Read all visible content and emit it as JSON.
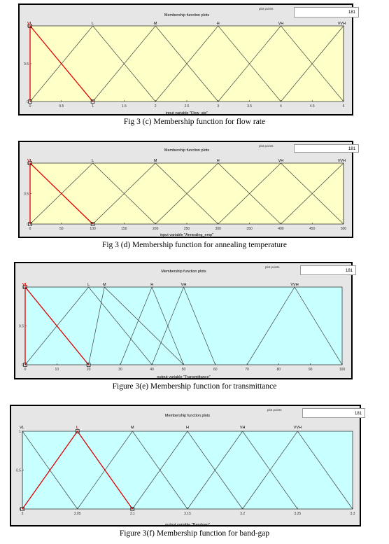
{
  "plot_points_label": "plot points",
  "chart_data": [
    {
      "type": "line",
      "title": "Membership function plots",
      "plot_points": "181",
      "xlabel": "input variable \"Flow_ate\"",
      "xlim": [
        0,
        5
      ],
      "ylim": [
        0,
        1
      ],
      "x_ticks": [
        "0",
        "0.5",
        "1",
        "1.5",
        "2",
        "2.5",
        "3",
        "3.5",
        "4",
        "4.5",
        "5"
      ],
      "y_ticks": [
        "0",
        "0.5",
        "1"
      ],
      "background": "#ffffc8",
      "series": [
        {
          "name": "VL",
          "x": [
            0,
            0,
            1
          ],
          "y": [
            0,
            1,
            0
          ],
          "selected": true
        },
        {
          "name": "L",
          "x": [
            0,
            1,
            2
          ],
          "y": [
            0,
            1,
            0
          ]
        },
        {
          "name": "M",
          "x": [
            1,
            2,
            3
          ],
          "y": [
            0,
            1,
            0
          ]
        },
        {
          "name": "H",
          "x": [
            2,
            3,
            4
          ],
          "y": [
            0,
            1,
            0
          ]
        },
        {
          "name": "VH",
          "x": [
            3,
            4,
            5
          ],
          "y": [
            0,
            1,
            0
          ]
        },
        {
          "name": "VVH",
          "x": [
            4,
            5,
            5
          ],
          "y": [
            0,
            1,
            0
          ]
        }
      ],
      "caption": "Fig 3 (c) Membership function for flow rate"
    },
    {
      "type": "line",
      "title": "Membership function plots",
      "plot_points": "181",
      "xlabel": "input variable \"Annealing_emp\"",
      "xlim": [
        0,
        500
      ],
      "ylim": [
        0,
        1
      ],
      "x_ticks": [
        "0",
        "50",
        "100",
        "150",
        "200",
        "250",
        "300",
        "350",
        "400",
        "450",
        "500"
      ],
      "y_ticks": [
        "0",
        "0.5",
        "1"
      ],
      "background": "#ffffc8",
      "series": [
        {
          "name": "VL",
          "x": [
            0,
            0,
            100
          ],
          "y": [
            0,
            1,
            0
          ],
          "selected": true
        },
        {
          "name": "L",
          "x": [
            0,
            100,
            200
          ],
          "y": [
            0,
            1,
            0
          ]
        },
        {
          "name": "M",
          "x": [
            100,
            200,
            300
          ],
          "y": [
            0,
            1,
            0
          ]
        },
        {
          "name": "H",
          "x": [
            200,
            300,
            400
          ],
          "y": [
            0,
            1,
            0
          ]
        },
        {
          "name": "VH",
          "x": [
            300,
            400,
            500
          ],
          "y": [
            0,
            1,
            0
          ]
        },
        {
          "name": "VVH",
          "x": [
            400,
            500,
            500
          ],
          "y": [
            0,
            1,
            0
          ]
        }
      ],
      "caption": "Fig 3 (d) Membership function for annealing temperature"
    },
    {
      "type": "line",
      "title": "Membership function plots",
      "plot_points": "181",
      "xlabel": "output variable \"Transmittance\"",
      "xlim": [
        0,
        100
      ],
      "ylim": [
        0,
        1
      ],
      "x_ticks": [
        "0",
        "10",
        "20",
        "30",
        "40",
        "50",
        "60",
        "70",
        "80",
        "90",
        "100"
      ],
      "y_ticks": [
        "0",
        "0.5",
        "1"
      ],
      "background": "#c8ffff",
      "series": [
        {
          "name": "VL",
          "x": [
            0,
            0,
            20
          ],
          "y": [
            0,
            1,
            0
          ],
          "selected": true
        },
        {
          "name": "L",
          "x": [
            0,
            20,
            40
          ],
          "y": [
            0,
            1,
            0
          ]
        },
        {
          "name": "M",
          "x": [
            20,
            25,
            50
          ],
          "y": [
            0,
            1,
            0
          ]
        },
        {
          "name": "H",
          "x": [
            30,
            40,
            50
          ],
          "y": [
            0,
            1,
            0
          ]
        },
        {
          "name": "VH",
          "x": [
            40,
            50,
            60
          ],
          "y": [
            0,
            1,
            0
          ]
        },
        {
          "name": "VVH",
          "x": [
            70,
            85,
            100
          ],
          "y": [
            0,
            1,
            0
          ]
        }
      ],
      "caption": "Figure 3(e) Membership function for transmittance"
    },
    {
      "type": "line",
      "title": "Membership function plots",
      "plot_points": "181",
      "xlabel": "output variable \"Bandgap\"",
      "xlim": [
        3,
        3.3
      ],
      "ylim": [
        0,
        1
      ],
      "x_ticks": [
        "3",
        "3.05",
        "3.1",
        "3.15",
        "3.2",
        "3.25",
        "3.3"
      ],
      "y_ticks": [
        "0",
        "0.5",
        "1"
      ],
      "background": "#c8ffff",
      "series": [
        {
          "name": "VL",
          "x": [
            3,
            3,
            3.05
          ],
          "y": [
            0,
            1,
            0
          ]
        },
        {
          "name": "L",
          "x": [
            3,
            3.05,
            3.1
          ],
          "y": [
            0,
            1,
            0
          ],
          "selected": true
        },
        {
          "name": "M",
          "x": [
            3.05,
            3.1,
            3.15
          ],
          "y": [
            0,
            1,
            0
          ]
        },
        {
          "name": "H",
          "x": [
            3.1,
            3.15,
            3.2
          ],
          "y": [
            0,
            1,
            0
          ]
        },
        {
          "name": "VH",
          "x": [
            3.15,
            3.2,
            3.25
          ],
          "y": [
            0,
            1,
            0
          ]
        },
        {
          "name": "VVH",
          "x": [
            3.2,
            3.25,
            3.3
          ],
          "y": [
            0,
            1,
            0
          ]
        }
      ],
      "caption": "Figure 3(f) Membership function for band-gap"
    }
  ]
}
